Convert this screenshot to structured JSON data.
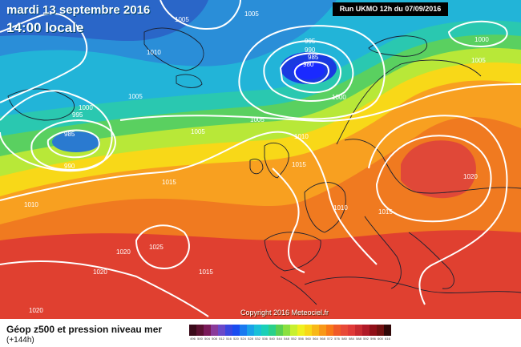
{
  "title": {
    "date": "mardi 13 septembre 2016",
    "time": "14:00 locale"
  },
  "run_info": "Run UKMO 12h du 07/09/2016",
  "copyright": "Copyright 2016 Meteociel.fr",
  "legend": {
    "title": "Géop z500 et pression niveau mer",
    "subtitle": "(+144h)",
    "colors": [
      "#3a0a1a",
      "#5a1030",
      "#7a1a5a",
      "#8a3a9a",
      "#6a48c8",
      "#3a46e0",
      "#1a4cf0",
      "#1a7af0",
      "#1aa2e8",
      "#1ac0d8",
      "#1ad0b8",
      "#2ad08a",
      "#5ad050",
      "#8ae040",
      "#c8f030",
      "#f0f020",
      "#f8d818",
      "#f8b818",
      "#f89818",
      "#f87818",
      "#f05a28",
      "#e84a38",
      "#e03a38",
      "#c82a30",
      "#b01a28",
      "#901018",
      "#701010",
      "#300808"
    ],
    "ticks": [
      "496",
      "500",
      "504",
      "508",
      "512",
      "516",
      "520",
      "524",
      "528",
      "532",
      "536",
      "540",
      "544",
      "548",
      "552",
      "556",
      "560",
      "564",
      "568",
      "572",
      "576",
      "580",
      "584",
      "588",
      "592",
      "596",
      "600",
      "616"
    ]
  },
  "isobar_labels": [
    {
      "text": "1005"
    },
    {
      "text": "1010"
    },
    {
      "text": "1005"
    },
    {
      "text": "1000"
    },
    {
      "text": "995"
    },
    {
      "text": "985"
    },
    {
      "text": "990"
    },
    {
      "text": "1005"
    },
    {
      "text": "1010"
    },
    {
      "text": "1015"
    },
    {
      "text": "1020"
    },
    {
      "text": "1025"
    },
    {
      "text": "1020"
    },
    {
      "text": "1015"
    },
    {
      "text": "995"
    },
    {
      "text": "990"
    },
    {
      "text": "985"
    },
    {
      "text": "980"
    },
    {
      "text": "1000"
    },
    {
      "text": "1005"
    },
    {
      "text": "1010"
    },
    {
      "text": "1010"
    },
    {
      "text": "1015"
    },
    {
      "text": "1020"
    },
    {
      "text": "1005"
    },
    {
      "text": "1000"
    },
    {
      "text": "1005"
    },
    {
      "text": "1015"
    },
    {
      "text": "1020"
    }
  ]
}
